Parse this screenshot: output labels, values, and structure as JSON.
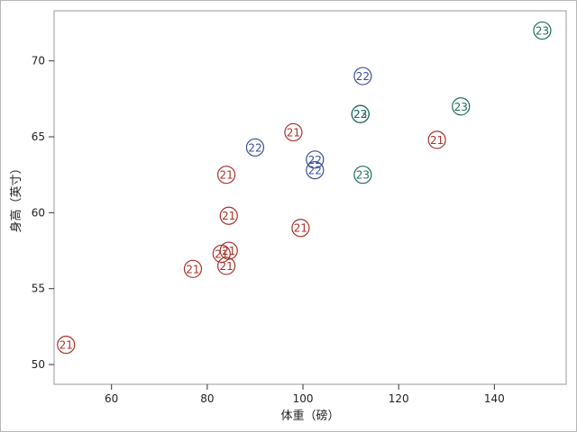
{
  "chart_data": {
    "type": "scatter",
    "xlabel": "体重（磅）",
    "ylabel": "身高（英寸）",
    "xlim": [
      48,
      155
    ],
    "ylim": [
      48.7,
      73.3
    ],
    "xticks": [
      60,
      80,
      100,
      120,
      140
    ],
    "yticks": [
      50,
      55,
      60,
      65,
      70
    ],
    "grid": false,
    "groups": [
      {
        "label": "21",
        "color": "#a8312a"
      },
      {
        "label": "22",
        "color": "#3b4f93"
      },
      {
        "label": "23",
        "color": "#1f6e5e"
      }
    ],
    "points": [
      {
        "x": 50.5,
        "y": 51.3,
        "label": "21"
      },
      {
        "x": 77.0,
        "y": 56.3,
        "label": "21"
      },
      {
        "x": 83.0,
        "y": 57.3,
        "label": "21"
      },
      {
        "x": 84.0,
        "y": 56.5,
        "label": "21"
      },
      {
        "x": 84.5,
        "y": 57.5,
        "label": "21"
      },
      {
        "x": 84.0,
        "y": 62.5,
        "label": "21"
      },
      {
        "x": 84.5,
        "y": 59.8,
        "label": "21"
      },
      {
        "x": 98.0,
        "y": 65.3,
        "label": "21"
      },
      {
        "x": 99.5,
        "y": 59.0,
        "label": "21"
      },
      {
        "x": 128.0,
        "y": 64.8,
        "label": "21"
      },
      {
        "x": 90.0,
        "y": 64.3,
        "label": "22"
      },
      {
        "x": 102.5,
        "y": 63.5,
        "label": "22"
      },
      {
        "x": 102.5,
        "y": 62.8,
        "label": "22"
      },
      {
        "x": 112.5,
        "y": 69.0,
        "label": "22"
      },
      {
        "x": 112.0,
        "y": 66.5,
        "label": "22"
      },
      {
        "x": 112.0,
        "y": 66.5,
        "label": "23"
      },
      {
        "x": 112.5,
        "y": 62.5,
        "label": "23"
      },
      {
        "x": 133.0,
        "y": 67.0,
        "label": "23"
      },
      {
        "x": 150.0,
        "y": 72.0,
        "label": "23"
      }
    ]
  }
}
